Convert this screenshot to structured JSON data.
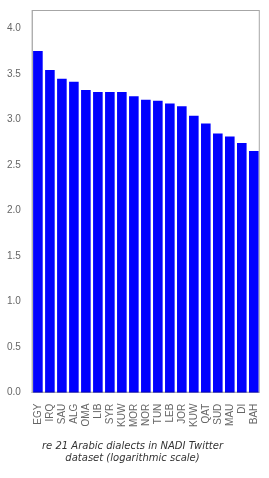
{
  "chart_data": {
    "type": "bar",
    "title": "re 21 Arabic dialects in NADI Twitter dataset (logarithmic scale)",
    "categories": [
      "EGY",
      "IRQ",
      "SAU",
      "ALG",
      "OMA",
      "LIB",
      "SYR",
      "KUW",
      "MOR",
      "NOR",
      "TUN",
      "LEB",
      "JOR",
      "KUW",
      "QAT",
      "SUD",
      "MAU",
      "DI",
      "BAH"
    ],
    "values": [
      3.7515,
      3.5441,
      3.4472,
      3.415,
      3.3222,
      3.301,
      3.301,
      3.301,
      3.2553,
      3.2175,
      3.2041,
      3.1761,
      3.1461,
      3.0414,
      2.9542,
      2.8451,
      2.8129,
      2.7404,
      2.6532
    ],
    "color": "#0000FF",
    "ylim": [
      0,
      4.2017
    ],
    "yticks": [
      {
        "value": 0,
        "label": "0.0"
      },
      {
        "value": 0.5,
        "label": "0.5"
      },
      {
        "value": 1,
        "label": "1.0"
      },
      {
        "value": 1.5,
        "label": "1.5"
      },
      {
        "value": 2,
        "label": "2.0"
      },
      {
        "value": 2.5,
        "label": "2.5"
      },
      {
        "value": 3,
        "label": "3.0"
      },
      {
        "value": 3.5,
        "label": "3.5"
      },
      {
        "value": 4,
        "label": "4.0"
      }
    ],
    "grid": false
  }
}
